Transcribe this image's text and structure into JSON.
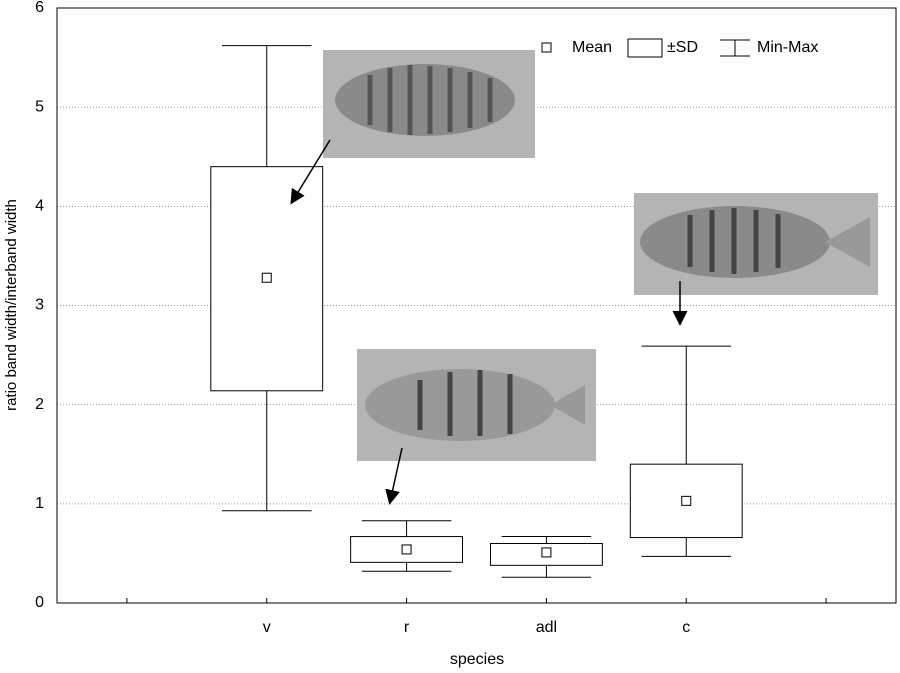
{
  "chart_data": {
    "type": "box",
    "xlabel": "species",
    "ylabel": "ratio band width/interband width",
    "categories": [
      null,
      "v",
      "r",
      "adl",
      "c",
      null
    ],
    "series": [
      {
        "name": "Mean",
        "values": [
          null,
          3.28,
          0.54,
          0.51,
          1.03,
          null
        ]
      },
      {
        "name": "±SD",
        "low": [
          null,
          2.14,
          0.41,
          0.38,
          0.66,
          null
        ],
        "high": [
          null,
          4.4,
          0.67,
          0.6,
          1.4,
          null
        ]
      },
      {
        "name": "Min-Max",
        "low": [
          null,
          0.93,
          0.32,
          0.26,
          0.47,
          null
        ],
        "high": [
          null,
          5.62,
          0.83,
          0.67,
          2.59,
          null
        ]
      }
    ],
    "ylim": [
      0,
      6
    ],
    "yticks": [
      0,
      1,
      2,
      3,
      4,
      5,
      6
    ],
    "grid": true
  }
}
